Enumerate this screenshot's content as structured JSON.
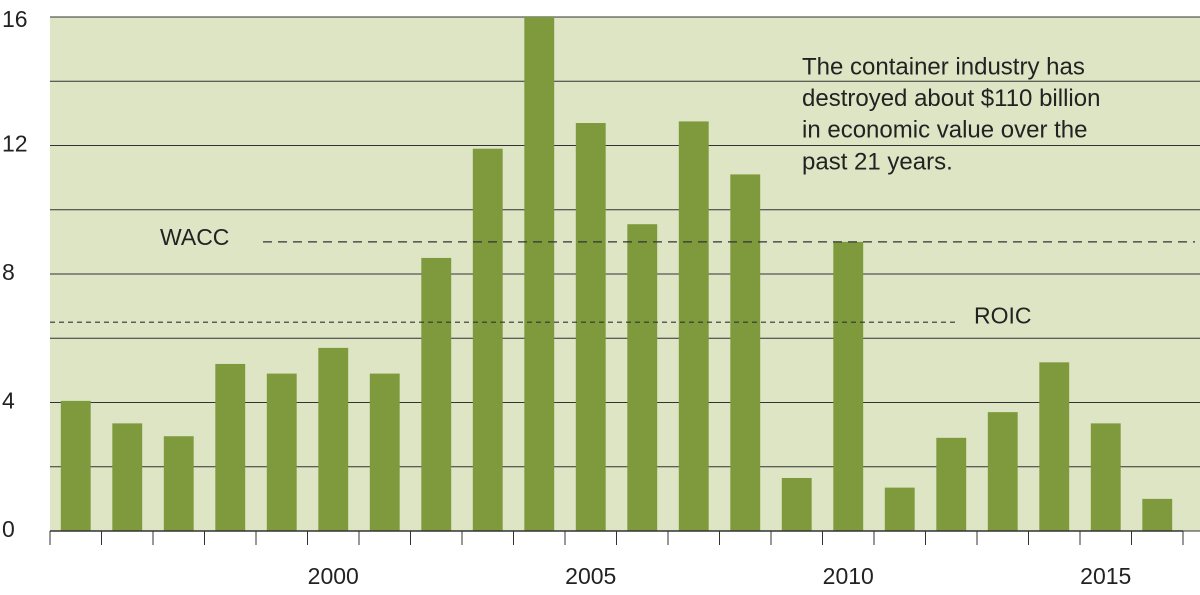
{
  "chart_data": {
    "type": "bar",
    "x": [
      1995,
      1996,
      1997,
      1998,
      1999,
      2000,
      2001,
      2002,
      2003,
      2004,
      2005,
      2006,
      2007,
      2008,
      2009,
      2010,
      2011,
      2012,
      2013,
      2014,
      2015,
      2016
    ],
    "values": [
      4.05,
      3.35,
      2.95,
      5.2,
      4.9,
      5.7,
      4.9,
      8.5,
      11.9,
      16,
      12.7,
      9.55,
      12.75,
      11.1,
      1.65,
      9.0,
      1.35,
      2.9,
      3.7,
      5.25,
      3.35,
      1.0
    ],
    "color": "#7f9a3c",
    "xlim": [
      1994.5,
      2016.5
    ],
    "xticks": [
      2000,
      2005,
      2010,
      2015
    ],
    "ylim": [
      0,
      16
    ],
    "yticks": [
      0,
      4,
      8,
      12,
      16
    ],
    "grid": true,
    "reference_lines": [
      {
        "label": "WACC",
        "value": 9.0
      },
      {
        "label": "ROIC",
        "value": 6.5
      }
    ],
    "annotation": [
      "The container industry has",
      "destroyed about $110 billion",
      "in economic value over the",
      "past 21 years."
    ]
  }
}
